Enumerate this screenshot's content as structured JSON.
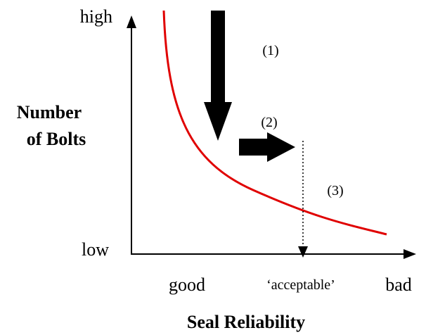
{
  "y_axis": {
    "label_lines": [
      "Number",
      "of Bolts"
    ],
    "high": "high",
    "low": "low"
  },
  "x_axis": {
    "label": "Seal Reliability",
    "good": "good",
    "acceptable": "‘acceptable’",
    "bad": "bad"
  },
  "steps": [
    "(1)",
    "(2)",
    "(3)"
  ]
}
